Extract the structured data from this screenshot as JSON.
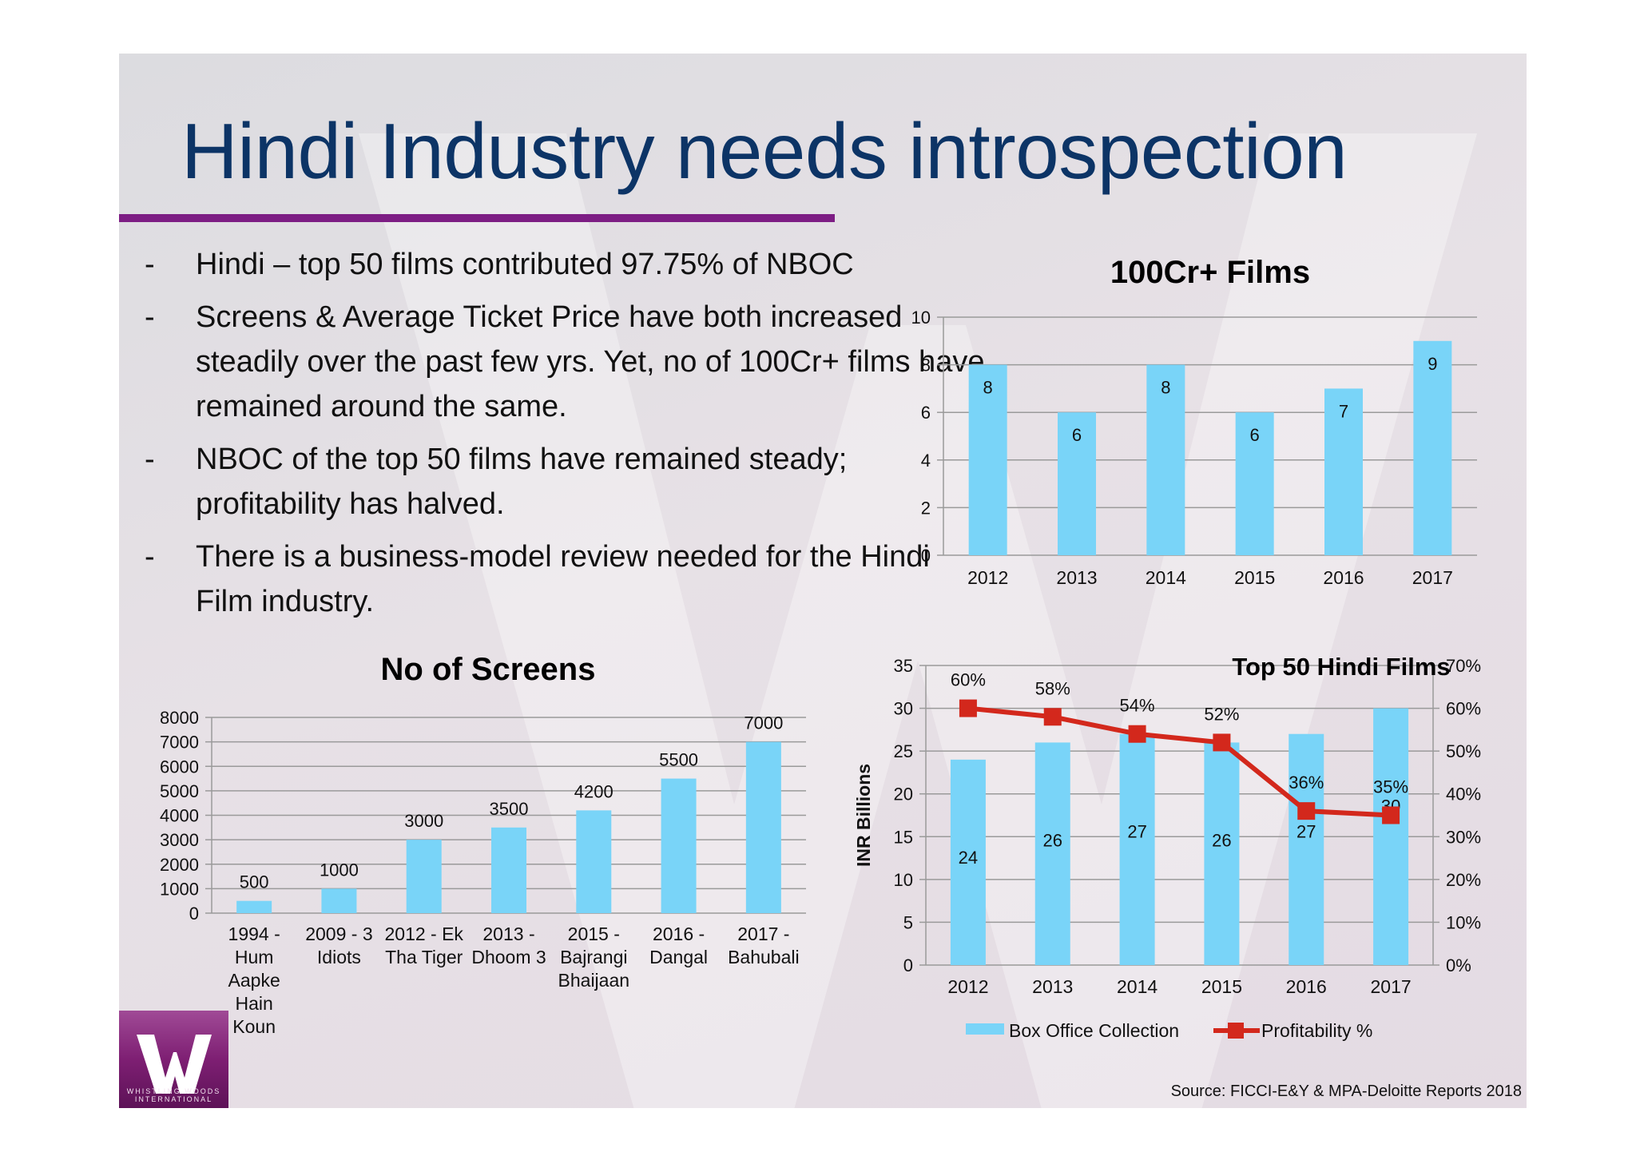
{
  "slide": {
    "title": "Hindi Industry needs introspection",
    "bullets": [
      {
        "dash": "-",
        "text": "Hindi – top 50 films contributed 97.75% of NBOC"
      },
      {
        "dash": "-",
        "text": "Screens & Average Ticket Price have both increased steadily over the past few yrs. Yet, no of 100Cr+ films have remained around the same."
      },
      {
        "dash": "-",
        "text": "NBOC of the top 50 films have remained steady; profitability has halved."
      },
      {
        "dash": "-",
        "text": "There is a business-model review needed for the Hindi Film industry."
      }
    ],
    "source": "Source: FICCI-E&Y & MPA-Deloitte Reports 2018",
    "logo_text": "WHISTLING WOODS INTERNATIONAL"
  },
  "colors": {
    "title": "#0c3466",
    "rule": "#7d1d84",
    "bar": "#79d4f8",
    "line": "#d3281c",
    "axis": "#9a9a9a"
  },
  "chart_data": [
    {
      "id": "films",
      "type": "bar",
      "title": "100Cr+ Films",
      "categories": [
        "2012",
        "2013",
        "2014",
        "2015",
        "2016",
        "2017"
      ],
      "values": [
        8,
        6,
        8,
        6,
        7,
        9
      ],
      "ylim": [
        0,
        10
      ],
      "yticks": [
        "0",
        "2",
        "4",
        "6",
        "8",
        "10"
      ],
      "grid": true
    },
    {
      "id": "screens",
      "type": "bar",
      "title": "No of Screens",
      "categories": [
        [
          "1994 -",
          "Hum",
          "Aapke",
          "Hain",
          "Koun"
        ],
        [
          "2009 - 3",
          "Idiots"
        ],
        [
          "2012 - Ek",
          "Tha Tiger"
        ],
        [
          "2013 -",
          "Dhoom 3"
        ],
        [
          "2015 -",
          "Bajrangi",
          "Bhaijaan"
        ],
        [
          "2016 -",
          "Dangal"
        ],
        [
          "2017 -",
          "Bahubali"
        ]
      ],
      "values": [
        500,
        1000,
        3000,
        3500,
        4200,
        5500,
        7000
      ],
      "ylim": [
        0,
        8000
      ],
      "yticks": [
        "0",
        "1000",
        "2000",
        "3000",
        "4000",
        "5000",
        "6000",
        "7000",
        "8000"
      ],
      "grid": true
    },
    {
      "id": "top50",
      "type": "bar+line",
      "title": "Top 50 Hindi Films",
      "categories": [
        "2012",
        "2013",
        "2014",
        "2015",
        "2016",
        "2017"
      ],
      "ylabel": "INR Billions",
      "ylim": [
        0,
        35
      ],
      "yticks": [
        "0",
        "5",
        "10",
        "15",
        "20",
        "25",
        "30",
        "35"
      ],
      "y2lim": [
        0,
        70
      ],
      "y2ticks": [
        "0%",
        "10%",
        "20%",
        "30%",
        "40%",
        "50%",
        "60%",
        "70%"
      ],
      "series": [
        {
          "name": "Box Office Collection",
          "type": "bar",
          "axis": "left",
          "values": [
            24,
            26,
            27,
            26,
            27,
            30
          ],
          "labels": [
            "24",
            "26",
            "27",
            "26",
            "27",
            "30"
          ]
        },
        {
          "name": "Profitability %",
          "type": "line",
          "axis": "right",
          "values": [
            60,
            58,
            54,
            52,
            36,
            35
          ],
          "labels": [
            "60%",
            "58%",
            "54%",
            "52%",
            "36%",
            "35%"
          ]
        }
      ],
      "legend": "bottom",
      "grid": true
    }
  ]
}
